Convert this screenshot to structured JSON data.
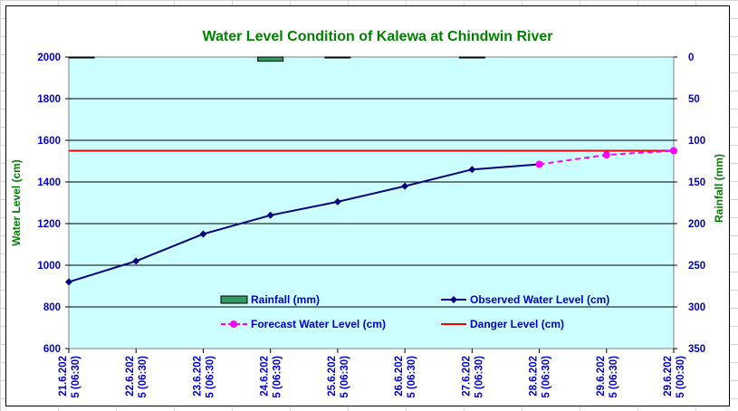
{
  "chart_data": {
    "type": "line",
    "title": "Water Level Condition of Kalewa at Chindwin River",
    "ylabel": "Water Level (cm)",
    "y2label": "Rainfall (mm)",
    "ylim": [
      600,
      2000
    ],
    "y2lim": [
      0,
      350
    ],
    "y2_inverted": true,
    "yticks": [
      600,
      800,
      1000,
      1200,
      1400,
      1600,
      1800,
      2000
    ],
    "y2ticks": [
      0,
      50,
      100,
      150,
      200,
      250,
      300,
      350
    ],
    "categories": [
      "21.6.202\n5 (06:30)",
      "22.6.202\n5 (06:30)",
      "23.6.202\n5 (06:30)",
      "24.6.202\n5 (06:30)",
      "25.6.202\n5 (06:30)",
      "26.6.202\n5 (06:30)",
      "27.6.202\n5 (06:30)",
      "28.6.202\n5 (06:30)",
      "29.6.202\n5 (06:30)",
      "29.6.202\n5 (00:30)"
    ],
    "grid": true,
    "legend_placement": "lower-center",
    "series": [
      {
        "name": "Rainfall (mm)",
        "kind": "bar",
        "axis": "y2",
        "color": "#339966",
        "values": [
          1,
          0,
          0,
          5,
          0.4,
          0,
          0.4,
          0,
          0,
          0
        ]
      },
      {
        "name": "Observed Water Level (cm)",
        "kind": "line",
        "color": "#000080",
        "marker": "diamond",
        "values": [
          920,
          1020,
          1150,
          1240,
          1305,
          1380,
          1460,
          1485,
          null,
          null
        ]
      },
      {
        "name": "Forecast Water Level (cm)",
        "kind": "line",
        "color": "#ff00ff",
        "dash": true,
        "marker": "circle",
        "values": [
          null,
          null,
          null,
          null,
          null,
          null,
          null,
          1485,
          1530,
          1550
        ]
      },
      {
        "name": "Danger Level (cm)",
        "kind": "hline",
        "color": "#ff0000",
        "value": 1550
      }
    ],
    "colors": {
      "plot_background": "#ccffff",
      "title": "#008000",
      "axis_label": "#008000",
      "tick": "#0000cc"
    }
  }
}
